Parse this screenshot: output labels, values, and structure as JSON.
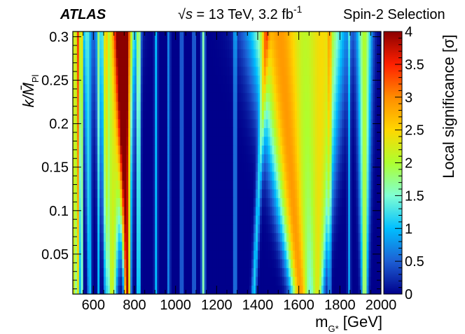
{
  "header": {
    "experiment": "ATLAS",
    "sqrt_symbol": "√",
    "energy_s": "s",
    "energy_text": " = 13 TeV, 3.2 fb",
    "lumi_exponent": "-1",
    "selection": "Spin-2 Selection"
  },
  "colors": {
    "colormap": [
      "#00008b",
      "#1d5fd4",
      "#00bfff",
      "#7fffd4",
      "#adff2f",
      "#ffd700",
      "#ff8c00",
      "#ff2000",
      "#8b0000"
    ],
    "frame": "#000000"
  },
  "chart_data": {
    "type": "heatmap",
    "title": "",
    "xlabel": "m",
    "xlabel_subscript": "G*",
    "xlabel_unit": " [GeV]",
    "ylabel": "k/M̄",
    "ylabel_subscript": "Pl",
    "zlabel": "Local significance [σ]",
    "xlim": [
      500,
      2000
    ],
    "ylim": [
      0.004,
      0.306
    ],
    "zlim": [
      0,
      4
    ],
    "x_ticks": [
      600,
      800,
      1000,
      1200,
      1400,
      1600,
      1800,
      2000
    ],
    "x_tick_labels": [
      "600",
      "800",
      "1000",
      "1200",
      "1400",
      "1600",
      "1800",
      "2000"
    ],
    "y_ticks": [
      0.05,
      0.1,
      0.15,
      0.2,
      0.25,
      0.3
    ],
    "y_tick_labels": [
      "0.05",
      "0.1",
      "0.15",
      "0.2",
      "0.25",
      "0.3"
    ],
    "z_ticks": [
      0,
      0.5,
      1,
      1.5,
      2,
      2.5,
      3,
      3.5,
      4
    ],
    "z_tick_labels": [
      "0",
      "0.5",
      "1",
      "1.5",
      "2",
      "2.5",
      "3",
      "3.5",
      "4"
    ],
    "features": [
      {
        "x0": 505,
        "slope": 3,
        "amp": 2.2,
        "w0": 12,
        "wk": 40
      },
      {
        "x0": 528,
        "slope": 0,
        "amp": 2.0,
        "w0": 5,
        "wk": 3
      },
      {
        "x0": 545,
        "slope": 0,
        "amp": 1.5,
        "w0": 4,
        "wk": 0
      },
      {
        "x0": 582,
        "slope": -40,
        "amp": 1.2,
        "w0": 6,
        "wk": 25
      },
      {
        "x0": 625,
        "slope": 0,
        "amp": 1.0,
        "w0": 4,
        "wk": 5
      },
      {
        "x0": 660,
        "slope": 0,
        "amp": 1.2,
        "w0": 4,
        "wk": 5
      },
      {
        "x0": 690,
        "slope": 50,
        "amp": 2.2,
        "w0": 15,
        "wk": 140
      },
      {
        "x0": 765,
        "slope": -65,
        "amp": 3.9,
        "w0": 10,
        "wk": 55
      },
      {
        "x0": 820,
        "slope": 0,
        "amp": 1.7,
        "w0": 5,
        "wk": 10
      },
      {
        "x0": 905,
        "slope": 0,
        "amp": 1.0,
        "w0": 5,
        "wk": 0
      },
      {
        "x0": 968,
        "slope": 0,
        "amp": 0.9,
        "w0": 4,
        "wk": 0
      },
      {
        "x0": 1030,
        "slope": 0,
        "amp": 1.0,
        "w0": 4,
        "wk": 0
      },
      {
        "x0": 1090,
        "slope": 0,
        "amp": 1.0,
        "w0": 4,
        "wk": 0
      },
      {
        "x0": 1135,
        "slope": 0,
        "amp": 1.6,
        "w0": 6,
        "wk": 0
      },
      {
        "x0": 1290,
        "slope": 0,
        "amp": 0.9,
        "w0": 5,
        "wk": 0
      },
      {
        "x0": 1380,
        "slope": 200,
        "amp": 1.1,
        "w0": 8,
        "wk": 10
      },
      {
        "x0": 1610,
        "slope": -340,
        "amp": 2.9,
        "w0": 30,
        "wk": 220
      },
      {
        "x0": 1690,
        "slope": 120,
        "amp": 2.2,
        "w0": 20,
        "wk": 160
      },
      {
        "x0": 1750,
        "slope": 0,
        "amp": 0.9,
        "w0": 5,
        "wk": 0
      },
      {
        "x0": 1845,
        "slope": 0,
        "amp": 0.8,
        "w0": 5,
        "wk": 0
      },
      {
        "x0": 1920,
        "slope": 0,
        "amp": 2.0,
        "w0": 10,
        "wk": 50
      }
    ],
    "grid": false
  }
}
